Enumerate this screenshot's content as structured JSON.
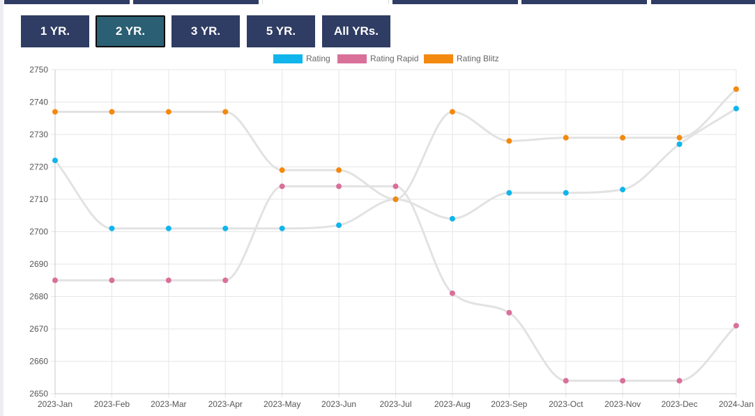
{
  "range_buttons": [
    {
      "label": "1 YR.",
      "active": false
    },
    {
      "label": "2 YR.",
      "active": true
    },
    {
      "label": "3 YR.",
      "active": false
    },
    {
      "label": "5 YR.",
      "active": false
    },
    {
      "label": "All YRs.",
      "active": false
    }
  ],
  "colors": {
    "button_bg": "#2f3c63",
    "button_active_bg": "#2b5f73",
    "line": "#e2e2e2",
    "grid": "#e6e6e6"
  },
  "chart_data": {
    "type": "line",
    "categories": [
      "2023-Jan",
      "2023-Feb",
      "2023-Mar",
      "2023-Apr",
      "2023-May",
      "2023-Jun",
      "2023-Jul",
      "2023-Aug",
      "2023-Sep",
      "2023-Oct",
      "2023-Nov",
      "2023-Dec",
      "2024-Jan"
    ],
    "series": [
      {
        "name": "Rating",
        "color": "#10b5ec",
        "values": [
          2722,
          2701,
          2701,
          2701,
          2701,
          2702,
          2710,
          2704,
          2712,
          2712,
          2713,
          2727,
          2738
        ]
      },
      {
        "name": "Rating Rapid",
        "color": "#d9709a",
        "values": [
          2685,
          2685,
          2685,
          2685,
          2714,
          2714,
          2714,
          2681,
          2675,
          2654,
          2654,
          2654,
          2671
        ]
      },
      {
        "name": "Rating Blitz",
        "color": "#f4890f",
        "values": [
          2737,
          2737,
          2737,
          2737,
          2719,
          2719,
          2710,
          2737,
          2728,
          2729,
          2729,
          2729,
          2744
        ]
      }
    ],
    "y_ticks": [
      "2650",
      "2660",
      "2670",
      "2680",
      "2690",
      "2700",
      "2710",
      "2720",
      "2730",
      "2740",
      "2750"
    ],
    "ylim": [
      2650,
      2750
    ],
    "legend_position": "top-center",
    "grid": true
  }
}
